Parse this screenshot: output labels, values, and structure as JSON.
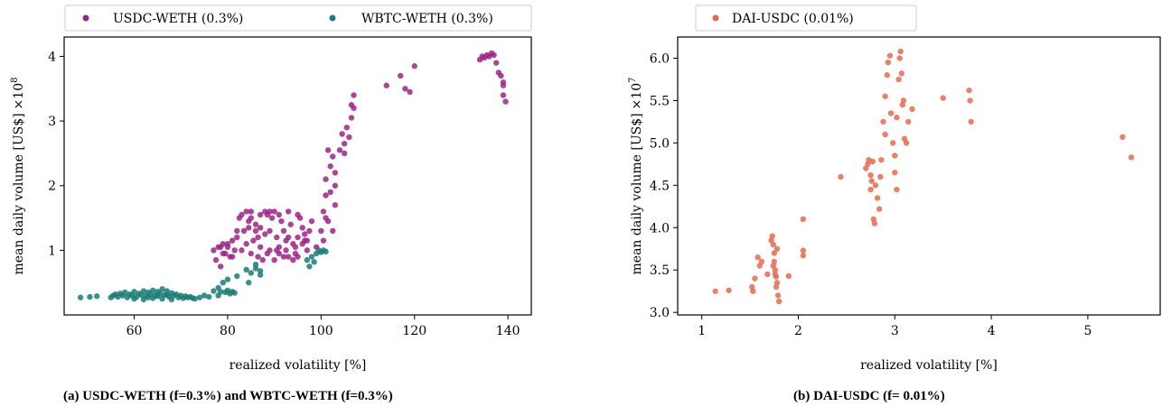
{
  "chart_data": [
    {
      "type": "scatter",
      "xlabel": "realized volatility [%]",
      "ylabel": "mean daily volume [US$]",
      "y_multiplier": "×10",
      "y_exponent": "8",
      "xlim": [
        45,
        145
      ],
      "ylim": [
        0.0,
        4.3
      ],
      "xticks": [
        60,
        80,
        100,
        120,
        140
      ],
      "yticks": [
        1,
        2,
        3,
        4
      ],
      "legend_position": "top (above plot)",
      "caption": "(a) USDC-WETH (f=0.3%) and WBTC-WETH (f=0.3%)",
      "series": [
        {
          "name": "USDC-WETH (0.3%)",
          "color": "#9b2485",
          "points": [
            [
              77,
              1.0
            ],
            [
              77.5,
              0.85
            ],
            [
              78,
              1.05
            ],
            [
              78.5,
              0.75
            ],
            [
              79,
              1.1
            ],
            [
              79.5,
              0.95
            ],
            [
              80,
              1.05
            ],
            [
              80.5,
              0.9
            ],
            [
              81,
              1.15
            ],
            [
              81.5,
              1.0
            ],
            [
              82,
              1.2
            ],
            [
              82.5,
              1.5
            ],
            [
              83,
              1.55
            ],
            [
              83.5,
              1.3
            ],
            [
              84,
              1.6
            ],
            [
              84.5,
              1.45
            ],
            [
              85,
              1.6
            ],
            [
              85.5,
              1.15
            ],
            [
              86,
              1.3
            ],
            [
              86.5,
              0.9
            ],
            [
              87,
              1.05
            ],
            [
              87.5,
              0.85
            ],
            [
              88,
              1.6
            ],
            [
              88.5,
              1.55
            ],
            [
              89,
              1.0
            ],
            [
              89.5,
              1.5
            ],
            [
              90,
              1.6
            ],
            [
              90.5,
              1.2
            ],
            [
              91,
              0.95
            ],
            [
              91.5,
              1.45
            ],
            [
              92,
              1.3
            ],
            [
              92.5,
              1.15
            ],
            [
              93,
              0.9
            ],
            [
              93.5,
              1.4
            ],
            [
              94,
              1.1
            ],
            [
              94.5,
              0.95
            ],
            [
              95,
              1.2
            ],
            [
              95.5,
              1.5
            ],
            [
              96,
              1.35
            ],
            [
              96.5,
              1.15
            ],
            [
              97,
              1.0
            ],
            [
              97.5,
              1.3
            ],
            [
              98,
              1.45
            ],
            [
              78.5,
              1.05
            ],
            [
              80,
              1.1
            ],
            [
              84,
              1.1
            ],
            [
              86,
              1.4
            ],
            [
              88,
              1.25
            ],
            [
              90,
              0.85
            ],
            [
              92,
              0.9
            ],
            [
              94,
              0.85
            ],
            [
              96,
              1.1
            ],
            [
              79,
              0.95
            ],
            [
              81,
              0.9
            ],
            [
              83,
              1.0
            ],
            [
              85,
              0.95
            ],
            [
              87,
              1.35
            ],
            [
              89,
              1.3
            ],
            [
              91,
              1.05
            ],
            [
              93,
              1.2
            ],
            [
              95,
              0.9
            ],
            [
              97,
              1.15
            ],
            [
              85,
              1.5
            ],
            [
              87,
              1.55
            ],
            [
              89,
              1.6
            ],
            [
              91,
              1.55
            ],
            [
              93,
              1.6
            ],
            [
              95,
              1.55
            ],
            [
              82,
              1.3
            ],
            [
              84.5,
              1.35
            ],
            [
              86.5,
              1.2
            ],
            [
              88.5,
              0.95
            ],
            [
              90.5,
              1.0
            ],
            [
              92.5,
              1.0
            ],
            [
              94.5,
              1.05
            ],
            [
              96.5,
              1.25
            ],
            [
              99,
              1.05
            ],
            [
              100,
              1.3
            ],
            [
              100.5,
              1.6
            ],
            [
              101,
              1.85
            ],
            [
              101,
              2.1
            ],
            [
              101.5,
              1.45
            ],
            [
              101.5,
              2.55
            ],
            [
              102,
              1.9
            ],
            [
              102,
              2.3
            ],
            [
              102.5,
              2.45
            ],
            [
              103,
              2.2
            ],
            [
              103,
              1.7
            ],
            [
              103,
              2.0
            ],
            [
              101,
              1.5
            ],
            [
              102.5,
              1.3
            ],
            [
              100.5,
              1.15
            ],
            [
              104,
              2.55
            ],
            [
              104.5,
              2.8
            ],
            [
              105,
              2.65
            ],
            [
              105.5,
              2.9
            ],
            [
              106,
              2.75
            ],
            [
              106.5,
              3.05
            ],
            [
              107,
              3.4
            ],
            [
              107,
              3.2
            ],
            [
              106.5,
              3.25
            ],
            [
              105,
              2.5
            ],
            [
              114,
              3.55
            ],
            [
              117,
              3.7
            ],
            [
              118,
              3.5
            ],
            [
              119,
              3.45
            ],
            [
              120,
              3.85
            ],
            [
              134,
              3.95
            ],
            [
              134.5,
              4.0
            ],
            [
              135,
              3.98
            ],
            [
              135.5,
              4.02
            ],
            [
              136,
              4.0
            ],
            [
              136.5,
              4.05
            ],
            [
              137,
              4.02
            ],
            [
              137.5,
              3.9
            ],
            [
              138,
              3.75
            ],
            [
              138.5,
              3.7
            ],
            [
              139,
              3.55
            ],
            [
              139,
              3.4
            ],
            [
              139.5,
              3.3
            ],
            [
              139,
              3.6
            ]
          ]
        },
        {
          "name": "WBTC-WETH (0.3%)",
          "color": "#1b7b76",
          "points": [
            [
              48.5,
              0.27
            ],
            [
              50.5,
              0.28
            ],
            [
              52,
              0.29
            ],
            [
              55,
              0.27
            ],
            [
              55.5,
              0.3
            ],
            [
              56,
              0.32
            ],
            [
              56.5,
              0.28
            ],
            [
              57,
              0.33
            ],
            [
              57.5,
              0.3
            ],
            [
              58,
              0.35
            ],
            [
              58.5,
              0.27
            ],
            [
              59,
              0.32
            ],
            [
              59.5,
              0.3
            ],
            [
              60,
              0.36
            ],
            [
              60.5,
              0.28
            ],
            [
              61,
              0.33
            ],
            [
              61.5,
              0.31
            ],
            [
              62,
              0.37
            ],
            [
              62.5,
              0.29
            ],
            [
              63,
              0.35
            ],
            [
              63.5,
              0.32
            ],
            [
              64,
              0.38
            ],
            [
              64.5,
              0.3
            ],
            [
              65,
              0.36
            ],
            [
              65.5,
              0.33
            ],
            [
              66,
              0.4
            ],
            [
              66.5,
              0.31
            ],
            [
              67,
              0.37
            ],
            [
              67.5,
              0.28
            ],
            [
              68,
              0.34
            ],
            [
              68.5,
              0.3
            ],
            [
              69,
              0.32
            ],
            [
              69.5,
              0.27
            ],
            [
              70,
              0.3
            ],
            [
              70.5,
              0.26
            ],
            [
              71,
              0.29
            ],
            [
              71.5,
              0.27
            ],
            [
              72,
              0.28
            ],
            [
              72.5,
              0.26
            ],
            [
              73,
              0.25
            ],
            [
              74,
              0.27
            ],
            [
              75,
              0.3
            ],
            [
              60,
              0.25
            ],
            [
              62,
              0.24
            ],
            [
              64,
              0.26
            ],
            [
              66,
              0.25
            ],
            [
              68,
              0.24
            ],
            [
              63,
              0.27
            ],
            [
              65,
              0.29
            ],
            [
              67,
              0.31
            ],
            [
              76,
              0.28
            ],
            [
              77,
              0.37
            ],
            [
              78,
              0.42
            ],
            [
              78.5,
              0.36
            ],
            [
              79,
              0.5
            ],
            [
              79.5,
              0.35
            ],
            [
              80,
              0.38
            ],
            [
              80.5,
              0.33
            ],
            [
              81,
              0.36
            ],
            [
              81.5,
              0.34
            ],
            [
              78,
              0.3
            ],
            [
              80,
              0.55
            ],
            [
              82,
              0.6
            ],
            [
              84,
              0.7
            ],
            [
              85,
              0.65
            ],
            [
              86,
              0.72
            ],
            [
              87,
              0.62
            ],
            [
              84.5,
              0.5
            ],
            [
              86,
              0.78
            ],
            [
              87,
              0.68
            ],
            [
              97,
              0.85
            ],
            [
              98,
              0.9
            ],
            [
              98.5,
              0.82
            ],
            [
              99,
              0.95
            ],
            [
              99.5,
              1.0
            ],
            [
              100,
              0.97
            ],
            [
              100.5,
              1.0
            ],
            [
              101,
              0.98
            ],
            [
              97.5,
              0.75
            ]
          ]
        }
      ]
    },
    {
      "type": "scatter",
      "xlabel": "realized volatility [%]",
      "ylabel": "mean daily volume [US$]",
      "y_multiplier": "×10",
      "y_exponent": "7",
      "xlim": [
        0.75,
        5.75
      ],
      "ylim": [
        2.97,
        6.25
      ],
      "xticks": [
        1,
        2,
        3,
        4,
        5
      ],
      "yticks": [
        "3.0",
        "3.5",
        "4.0",
        "4.5",
        "5.0",
        "5.5",
        "6.0"
      ],
      "legend_position": "top (above plot)",
      "caption": "(b) DAI-USDC (f= 0.01%)",
      "series": [
        {
          "name": "DAI-USDC (0.01%)",
          "color": "#e56a4f",
          "points": [
            [
              1.14,
              3.25
            ],
            [
              1.28,
              3.26
            ],
            [
              1.52,
              3.3
            ],
            [
              1.53,
              3.25
            ],
            [
              1.55,
              3.4
            ],
            [
              1.58,
              3.65
            ],
            [
              1.6,
              3.55
            ],
            [
              1.62,
              3.6
            ],
            [
              1.68,
              3.45
            ],
            [
              1.72,
              3.85
            ],
            [
              1.73,
              3.9
            ],
            [
              1.74,
              3.8
            ],
            [
              1.75,
              3.7
            ],
            [
              1.75,
              3.6
            ],
            [
              1.76,
              3.5
            ],
            [
              1.77,
              3.42
            ],
            [
              1.78,
              3.35
            ],
            [
              1.79,
              3.2
            ],
            [
              1.8,
              3.13
            ],
            [
              1.77,
              3.3
            ],
            [
              1.78,
              3.75
            ],
            [
              1.74,
              3.55
            ],
            [
              1.76,
              3.45
            ],
            [
              1.9,
              3.43
            ],
            [
              2.05,
              3.73
            ],
            [
              2.05,
              3.67
            ],
            [
              2.05,
              4.1
            ],
            [
              2.44,
              4.6
            ],
            [
              2.7,
              4.7
            ],
            [
              2.72,
              4.75
            ],
            [
              2.73,
              4.8
            ],
            [
              2.75,
              4.45
            ],
            [
              2.76,
              4.55
            ],
            [
              2.77,
              4.78
            ],
            [
              2.78,
              4.1
            ],
            [
              2.79,
              4.05
            ],
            [
              2.8,
              4.5
            ],
            [
              2.82,
              4.35
            ],
            [
              2.84,
              4.22
            ],
            [
              2.86,
              4.8
            ],
            [
              2.88,
              5.25
            ],
            [
              2.9,
              5.55
            ],
            [
              2.92,
              5.8
            ],
            [
              2.93,
              5.95
            ],
            [
              2.95,
              6.03
            ],
            [
              2.96,
              5.35
            ],
            [
              2.98,
              5.0
            ],
            [
              3.0,
              4.85
            ],
            [
              3.0,
              4.65
            ],
            [
              3.02,
              5.3
            ],
            [
              3.04,
              5.75
            ],
            [
              3.05,
              6.0
            ],
            [
              3.06,
              6.08
            ],
            [
              3.07,
              5.82
            ],
            [
              3.08,
              5.45
            ],
            [
              3.09,
              5.5
            ],
            [
              3.1,
              5.05
            ],
            [
              3.12,
              5.0
            ],
            [
              3.14,
              5.25
            ],
            [
              3.18,
              5.4
            ],
            [
              3.02,
              4.45
            ],
            [
              2.75,
              4.62
            ],
            [
              2.85,
              4.6
            ],
            [
              2.9,
              5.1
            ],
            [
              3.5,
              5.53
            ],
            [
              3.77,
              5.62
            ],
            [
              3.78,
              5.5
            ],
            [
              3.79,
              5.25
            ],
            [
              5.36,
              5.07
            ],
            [
              5.45,
              4.83
            ]
          ]
        }
      ]
    }
  ]
}
